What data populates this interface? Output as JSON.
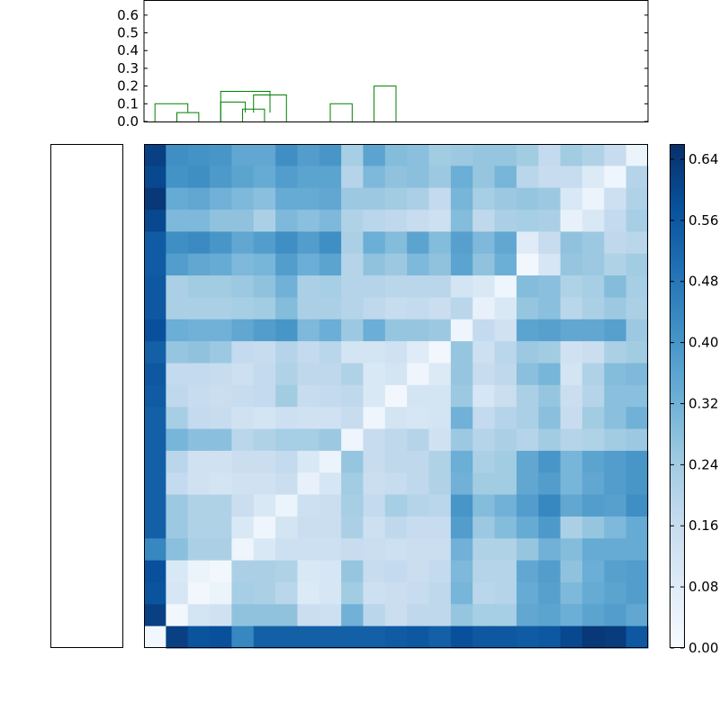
{
  "chart_data": [
    {
      "type": "dendrogram",
      "orientation": "top",
      "n_leaves": 23,
      "ylim": [
        0,
        0.66
      ],
      "yticks": [
        "0.0",
        "0.1",
        "0.2",
        "0.3",
        "0.4",
        "0.5",
        "0.6"
      ],
      "link_colors": {
        "cluster": "#008000",
        "root": "#0000ff"
      },
      "links": [
        {
          "a": 1,
          "b": 2,
          "h": 0.05,
          "color": "cluster"
        },
        {
          "a": 0,
          "b": 1.5,
          "h": 0.1,
          "color": "cluster"
        },
        {
          "a": 4,
          "b": 5,
          "h": 0.07,
          "color": "cluster"
        },
        {
          "a": 4.5,
          "b": 6,
          "h": 0.15,
          "color": "cluster"
        },
        {
          "a": 3,
          "b": 5.25,
          "h": 0.17,
          "color": "cluster"
        },
        {
          "a": 3,
          "b": 4.125,
          "h": 0.11,
          "color": "cluster"
        },
        {
          "a": 8,
          "b": 9,
          "h": 0.1,
          "color": "cluster"
        },
        {
          "a": 10,
          "b": 11,
          "h": 0.2,
          "color": "cluster"
        }
      ]
    },
    {
      "type": "dendrogram",
      "orientation": "left",
      "link_colors": {
        "cluster": "#008000",
        "root": "#0000ff"
      }
    },
    {
      "type": "heatmap",
      "rows": 23,
      "cols": 23,
      "colormap": "Blues",
      "vmin": 0.0,
      "vmax": 0.66,
      "colorbar_ticks": [
        "0.00",
        "0.08",
        "0.16",
        "0.24",
        "0.32",
        "0.40",
        "0.48",
        "0.56",
        "0.64"
      ],
      "values": [
        [
          0.62,
          0.42,
          0.41,
          0.4,
          0.35,
          0.35,
          0.42,
          0.38,
          0.4,
          0.23,
          0.36,
          0.29,
          0.28,
          0.24,
          0.25,
          0.26,
          0.26,
          0.24,
          0.17,
          0.24,
          0.21,
          0.16,
          0.04
        ],
        [
          0.6,
          0.41,
          0.42,
          0.39,
          0.36,
          0.34,
          0.38,
          0.36,
          0.36,
          0.2,
          0.3,
          0.27,
          0.28,
          0.25,
          0.33,
          0.26,
          0.31,
          0.19,
          0.16,
          0.16,
          0.09,
          0.03,
          0.2
        ],
        [
          0.64,
          0.34,
          0.35,
          0.32,
          0.3,
          0.28,
          0.34,
          0.34,
          0.35,
          0.25,
          0.25,
          0.24,
          0.22,
          0.17,
          0.31,
          0.23,
          0.25,
          0.26,
          0.25,
          0.1,
          0.04,
          0.14,
          0.21
        ],
        [
          0.6,
          0.3,
          0.3,
          0.27,
          0.27,
          0.22,
          0.3,
          0.28,
          0.3,
          0.21,
          0.19,
          0.18,
          0.16,
          0.14,
          0.29,
          0.18,
          0.22,
          0.23,
          0.22,
          0.05,
          0.1,
          0.17,
          0.23
        ],
        [
          0.55,
          0.42,
          0.43,
          0.4,
          0.35,
          0.38,
          0.42,
          0.38,
          0.42,
          0.22,
          0.33,
          0.29,
          0.36,
          0.29,
          0.37,
          0.3,
          0.35,
          0.08,
          0.16,
          0.27,
          0.25,
          0.18,
          0.19
        ],
        [
          0.55,
          0.38,
          0.35,
          0.34,
          0.3,
          0.31,
          0.38,
          0.33,
          0.36,
          0.2,
          0.27,
          0.25,
          0.3,
          0.27,
          0.36,
          0.27,
          0.33,
          0.02,
          0.11,
          0.26,
          0.25,
          0.21,
          0.24
        ],
        [
          0.56,
          0.22,
          0.24,
          0.24,
          0.25,
          0.27,
          0.32,
          0.22,
          0.23,
          0.2,
          0.2,
          0.19,
          0.19,
          0.19,
          0.12,
          0.1,
          0.03,
          0.29,
          0.28,
          0.21,
          0.23,
          0.29,
          0.23
        ],
        [
          0.56,
          0.22,
          0.22,
          0.22,
          0.23,
          0.24,
          0.29,
          0.22,
          0.22,
          0.2,
          0.18,
          0.16,
          0.17,
          0.15,
          0.19,
          0.05,
          0.1,
          0.26,
          0.28,
          0.19,
          0.22,
          0.25,
          0.22
        ],
        [
          0.58,
          0.33,
          0.32,
          0.32,
          0.35,
          0.38,
          0.4,
          0.3,
          0.33,
          0.25,
          0.33,
          0.26,
          0.26,
          0.25,
          0.03,
          0.17,
          0.13,
          0.36,
          0.37,
          0.35,
          0.35,
          0.37,
          0.25
        ],
        [
          0.54,
          0.26,
          0.27,
          0.25,
          0.17,
          0.16,
          0.2,
          0.17,
          0.19,
          0.12,
          0.12,
          0.13,
          0.08,
          0.02,
          0.26,
          0.14,
          0.19,
          0.25,
          0.24,
          0.13,
          0.15,
          0.22,
          0.24
        ],
        [
          0.56,
          0.17,
          0.17,
          0.16,
          0.14,
          0.17,
          0.21,
          0.18,
          0.18,
          0.21,
          0.1,
          0.12,
          0.03,
          0.09,
          0.26,
          0.16,
          0.18,
          0.28,
          0.31,
          0.12,
          0.21,
          0.29,
          0.3
        ],
        [
          0.55,
          0.18,
          0.16,
          0.15,
          0.16,
          0.17,
          0.24,
          0.16,
          0.17,
          0.18,
          0.1,
          0.02,
          0.12,
          0.12,
          0.25,
          0.11,
          0.15,
          0.22,
          0.26,
          0.15,
          0.2,
          0.28,
          0.28
        ],
        [
          0.54,
          0.23,
          0.17,
          0.16,
          0.13,
          0.12,
          0.14,
          0.13,
          0.13,
          0.16,
          0.03,
          0.12,
          0.11,
          0.12,
          0.32,
          0.17,
          0.2,
          0.22,
          0.28,
          0.16,
          0.24,
          0.28,
          0.32
        ],
        [
          0.54,
          0.31,
          0.28,
          0.28,
          0.19,
          0.21,
          0.23,
          0.23,
          0.25,
          0.03,
          0.16,
          0.18,
          0.2,
          0.13,
          0.25,
          0.2,
          0.22,
          0.2,
          0.24,
          0.2,
          0.21,
          0.24,
          0.25
        ],
        [
          0.54,
          0.19,
          0.13,
          0.13,
          0.15,
          0.15,
          0.17,
          0.1,
          0.04,
          0.26,
          0.16,
          0.18,
          0.18,
          0.21,
          0.33,
          0.22,
          0.24,
          0.35,
          0.4,
          0.31,
          0.36,
          0.38,
          0.4
        ],
        [
          0.54,
          0.17,
          0.13,
          0.12,
          0.13,
          0.13,
          0.15,
          0.05,
          0.11,
          0.24,
          0.15,
          0.16,
          0.18,
          0.21,
          0.32,
          0.24,
          0.24,
          0.35,
          0.38,
          0.31,
          0.35,
          0.38,
          0.4
        ],
        [
          0.54,
          0.25,
          0.21,
          0.21,
          0.15,
          0.1,
          0.04,
          0.14,
          0.15,
          0.23,
          0.17,
          0.23,
          0.2,
          0.19,
          0.4,
          0.29,
          0.32,
          0.38,
          0.44,
          0.35,
          0.38,
          0.37,
          0.42
        ],
        [
          0.54,
          0.25,
          0.21,
          0.21,
          0.1,
          0.03,
          0.12,
          0.15,
          0.15,
          0.22,
          0.14,
          0.18,
          0.16,
          0.16,
          0.38,
          0.25,
          0.29,
          0.34,
          0.39,
          0.22,
          0.26,
          0.3,
          0.34
        ],
        [
          0.44,
          0.28,
          0.22,
          0.22,
          0.03,
          0.1,
          0.14,
          0.14,
          0.14,
          0.16,
          0.15,
          0.14,
          0.15,
          0.15,
          0.32,
          0.21,
          0.21,
          0.26,
          0.32,
          0.29,
          0.34,
          0.34,
          0.34
        ],
        [
          0.58,
          0.1,
          0.04,
          0.02,
          0.22,
          0.22,
          0.21,
          0.1,
          0.11,
          0.26,
          0.16,
          0.17,
          0.15,
          0.17,
          0.3,
          0.2,
          0.2,
          0.35,
          0.38,
          0.27,
          0.33,
          0.37,
          0.38
        ],
        [
          0.57,
          0.11,
          0.02,
          0.04,
          0.23,
          0.22,
          0.19,
          0.09,
          0.11,
          0.24,
          0.14,
          0.15,
          0.16,
          0.18,
          0.31,
          0.19,
          0.2,
          0.34,
          0.37,
          0.3,
          0.34,
          0.36,
          0.38
        ],
        [
          0.62,
          0.02,
          0.12,
          0.13,
          0.27,
          0.27,
          0.27,
          0.15,
          0.14,
          0.32,
          0.19,
          0.15,
          0.18,
          0.18,
          0.26,
          0.23,
          0.23,
          0.35,
          0.36,
          0.33,
          0.36,
          0.38,
          0.35
        ],
        [
          0.02,
          0.62,
          0.57,
          0.58,
          0.44,
          0.54,
          0.54,
          0.54,
          0.54,
          0.54,
          0.54,
          0.55,
          0.56,
          0.54,
          0.58,
          0.56,
          0.56,
          0.55,
          0.56,
          0.6,
          0.64,
          0.63,
          0.56
        ]
      ]
    }
  ]
}
